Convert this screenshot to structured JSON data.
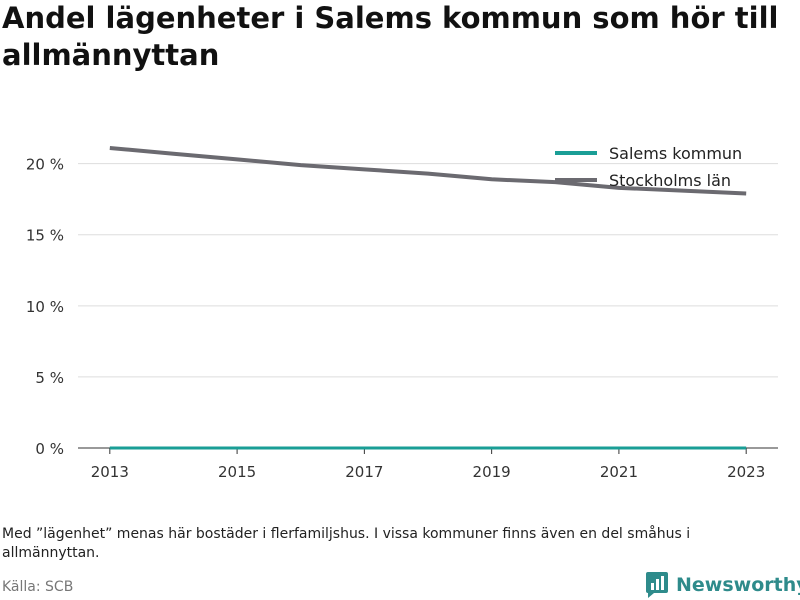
{
  "title": "Andel lägenheter i Salems kommun som hör till allmännyttan",
  "note": "Med ”lägenhet” menas här bostäder i flerfamiljshus. I vissa kommuner finns även en del småhus i allmännyttan.",
  "source": "Källa: SCB",
  "brand": {
    "name": "Newsworthy",
    "icon": "newsworthy-logo-icon",
    "color": "#2e8b8b"
  },
  "chart_data": {
    "type": "line",
    "x": [
      2013,
      2014,
      2015,
      2016,
      2017,
      2018,
      2019,
      2020,
      2021,
      2022,
      2023
    ],
    "xticks": [
      2013,
      2015,
      2017,
      2019,
      2021,
      2023
    ],
    "xtick_labels": [
      "2013",
      "2015",
      "2017",
      "2019",
      "2021",
      "2023"
    ],
    "yticks": [
      0,
      5,
      10,
      15,
      20
    ],
    "ytick_labels": [
      "0 %",
      "5 %",
      "10 %",
      "15 %",
      "20 %"
    ],
    "ylim": [
      0,
      23
    ],
    "grid": true,
    "legend": "top-right",
    "series": [
      {
        "name": "Salems kommun",
        "color": "#1a9e96",
        "values": [
          0,
          0,
          0,
          0,
          0,
          0,
          0,
          0,
          0,
          0,
          0
        ]
      },
      {
        "name": "Stockholms län",
        "color": "#6b6a70",
        "values": [
          21.1,
          20.7,
          20.3,
          19.9,
          19.6,
          19.3,
          18.9,
          18.7,
          18.3,
          18.1,
          17.9
        ]
      }
    ]
  }
}
